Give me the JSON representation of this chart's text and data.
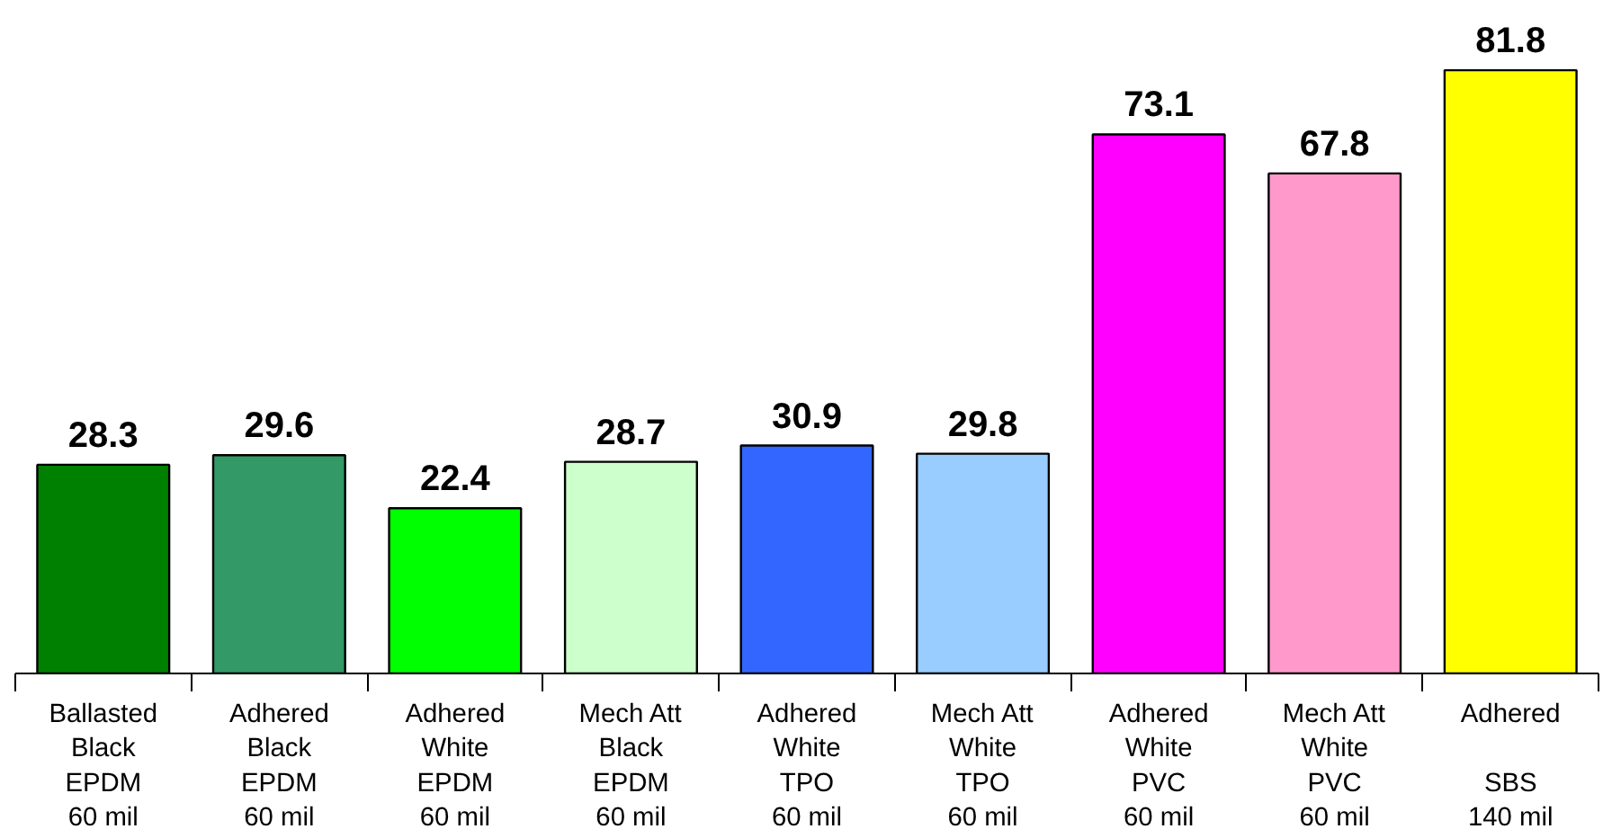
{
  "chart_data": {
    "type": "bar",
    "categories": [
      "Ballasted\nBlack\nEPDM\n60 mil",
      "Adhered\nBlack\nEPDM\n60 mil",
      "Adhered\nWhite\nEPDM\n60 mil",
      "Mech Att\nBlack\nEPDM\n60 mil",
      "Adhered\nWhite\nTPO\n60 mil",
      "Mech Att\nWhite\nTPO\n60 mil",
      "Adhered\nWhite\nPVC\n60 mil",
      "Mech Att\nWhite\nPVC\n60 mil",
      "Adhered\n\nSBS\n140 mil"
    ],
    "values": [
      28.3,
      29.6,
      22.4,
      28.7,
      30.9,
      29.8,
      73.1,
      67.8,
      81.8
    ],
    "colors": [
      "#008000",
      "#339966",
      "#00ff00",
      "#ccffcc",
      "#3366ff",
      "#99ccff",
      "#ff00ff",
      "#ff99cc",
      "#ffff00"
    ],
    "data_labels": true
  }
}
